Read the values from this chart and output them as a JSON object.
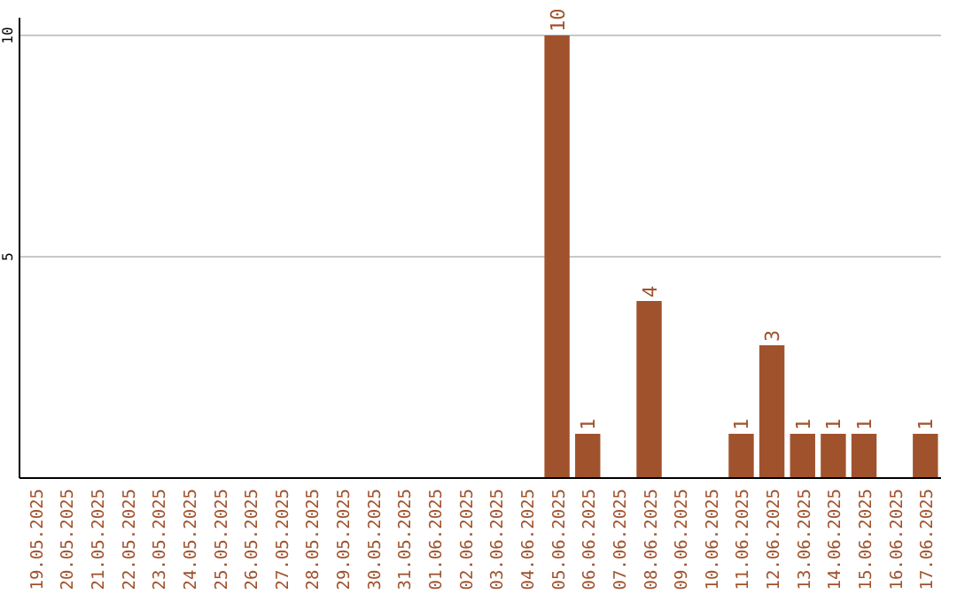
{
  "chart_data": {
    "type": "bar",
    "categories": [
      "19.05.2025",
      "20.05.2025",
      "21.05.2025",
      "22.05.2025",
      "23.05.2025",
      "24.05.2025",
      "25.05.2025",
      "26.05.2025",
      "27.05.2025",
      "28.05.2025",
      "29.05.2025",
      "30.05.2025",
      "31.05.2025",
      "01.06.2025",
      "02.06.2025",
      "03.06.2025",
      "04.06.2025",
      "05.06.2025",
      "06.06.2025",
      "07.06.2025",
      "08.06.2025",
      "09.06.2025",
      "10.06.2025",
      "11.06.2025",
      "12.06.2025",
      "13.06.2025",
      "14.06.2025",
      "15.06.2025",
      "16.06.2025",
      "17.06.2025"
    ],
    "values": [
      0,
      0,
      0,
      0,
      0,
      0,
      0,
      0,
      0,
      0,
      0,
      0,
      0,
      0,
      0,
      0,
      0,
      10,
      1,
      0,
      4,
      0,
      0,
      1,
      3,
      1,
      1,
      1,
      0,
      1
    ],
    "value_labels": [
      null,
      null,
      null,
      null,
      null,
      null,
      null,
      null,
      null,
      null,
      null,
      null,
      null,
      null,
      null,
      null,
      null,
      "10",
      "1",
      null,
      "4",
      null,
      null,
      "1",
      "3",
      "1",
      "1",
      "1",
      null,
      "1"
    ],
    "color": "#a0522d",
    "ylim": [
      0,
      10
    ],
    "yticks": [
      5,
      10
    ],
    "grid": "y"
  }
}
